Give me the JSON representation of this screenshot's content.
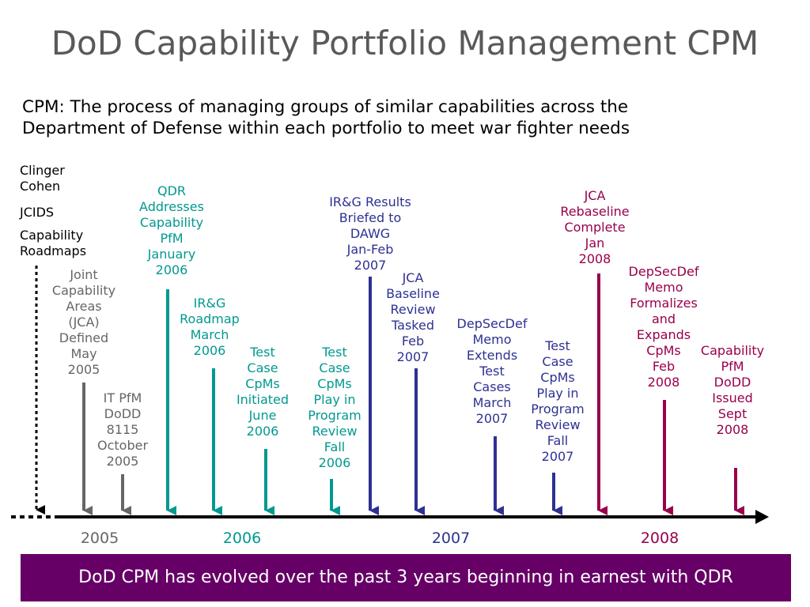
{
  "title": "DoD Capability Portfolio Management CPM",
  "subtitle": {
    "line1": "CPM: The process of managing groups of similar capabilities across the",
    "line2": "Department of Defense within each portfolio to meet war fighter needs"
  },
  "legend": {
    "clinger": [
      "Clinger",
      "Cohen"
    ],
    "jcids": "JCIDS",
    "roadmaps": [
      "Capability",
      "Roadmaps"
    ]
  },
  "colors": {
    "gray": "#666666",
    "teal": "#00998f",
    "navy": "#2e3192",
    "maroon": "#99004c",
    "banner": "#660066"
  },
  "events": [
    {
      "id": "jca-defined",
      "color": "gray",
      "lines": [
        "Joint",
        "Capability",
        "Areas",
        "(JCA)",
        "Defined",
        "May",
        "2005"
      ]
    },
    {
      "id": "it-pfm",
      "color": "gray",
      "lines": [
        "IT PfM",
        "DoDD",
        "8115",
        "October",
        "2005"
      ]
    },
    {
      "id": "qdr",
      "color": "teal",
      "lines": [
        "QDR",
        "Addresses",
        "Capability",
        "PfM",
        "January",
        "2006"
      ]
    },
    {
      "id": "irg-roadmap",
      "color": "teal",
      "lines": [
        "IR&G",
        "Roadmap",
        "March",
        "2006"
      ]
    },
    {
      "id": "test-cpms-initiated",
      "color": "teal",
      "lines": [
        "Test",
        "Case",
        "CpMs",
        "Initiated",
        "June",
        "2006"
      ]
    },
    {
      "id": "test-cpms-play-2006",
      "color": "teal",
      "lines": [
        "Test",
        "Case",
        "CpMs",
        "Play in",
        "Program",
        "Review",
        "Fall",
        "2006"
      ]
    },
    {
      "id": "irg-results",
      "color": "navy",
      "lines": [
        "IR&G Results",
        "Briefed to",
        "DAWG",
        "Jan-Feb",
        "2007"
      ]
    },
    {
      "id": "jca-baseline-review",
      "color": "navy",
      "lines": [
        "JCA",
        "Baseline",
        "Review",
        "Tasked",
        "Feb",
        "2007"
      ]
    },
    {
      "id": "depsecdef-extends",
      "color": "navy",
      "lines": [
        "DepSecDef",
        "Memo",
        "Extends",
        "Test",
        "Cases",
        "March",
        "2007"
      ]
    },
    {
      "id": "test-cpms-play-2007",
      "color": "navy",
      "lines": [
        "Test",
        "Case",
        "CpMs",
        "Play in",
        "Program",
        "Review",
        "Fall",
        "2007"
      ]
    },
    {
      "id": "jca-rebaseline",
      "color": "maroon",
      "lines": [
        "JCA",
        "Rebaseline",
        "Complete",
        "Jan",
        "2008"
      ]
    },
    {
      "id": "depsecdef-formalizes",
      "color": "maroon",
      "lines": [
        "DepSecDef",
        "Memo",
        "Formalizes",
        "and",
        "Expands",
        "CpMs",
        "Feb",
        "2008"
      ]
    },
    {
      "id": "capability-pfm-dodd",
      "color": "maroon",
      "lines": [
        "Capability",
        "PfM",
        "DoDD",
        "Issued",
        "Sept",
        "2008"
      ]
    }
  ],
  "years": [
    "2005",
    "2006",
    "2007",
    "2008"
  ],
  "banner": "DoD CPM has evolved over the past 3 years beginning in earnest with QDR"
}
